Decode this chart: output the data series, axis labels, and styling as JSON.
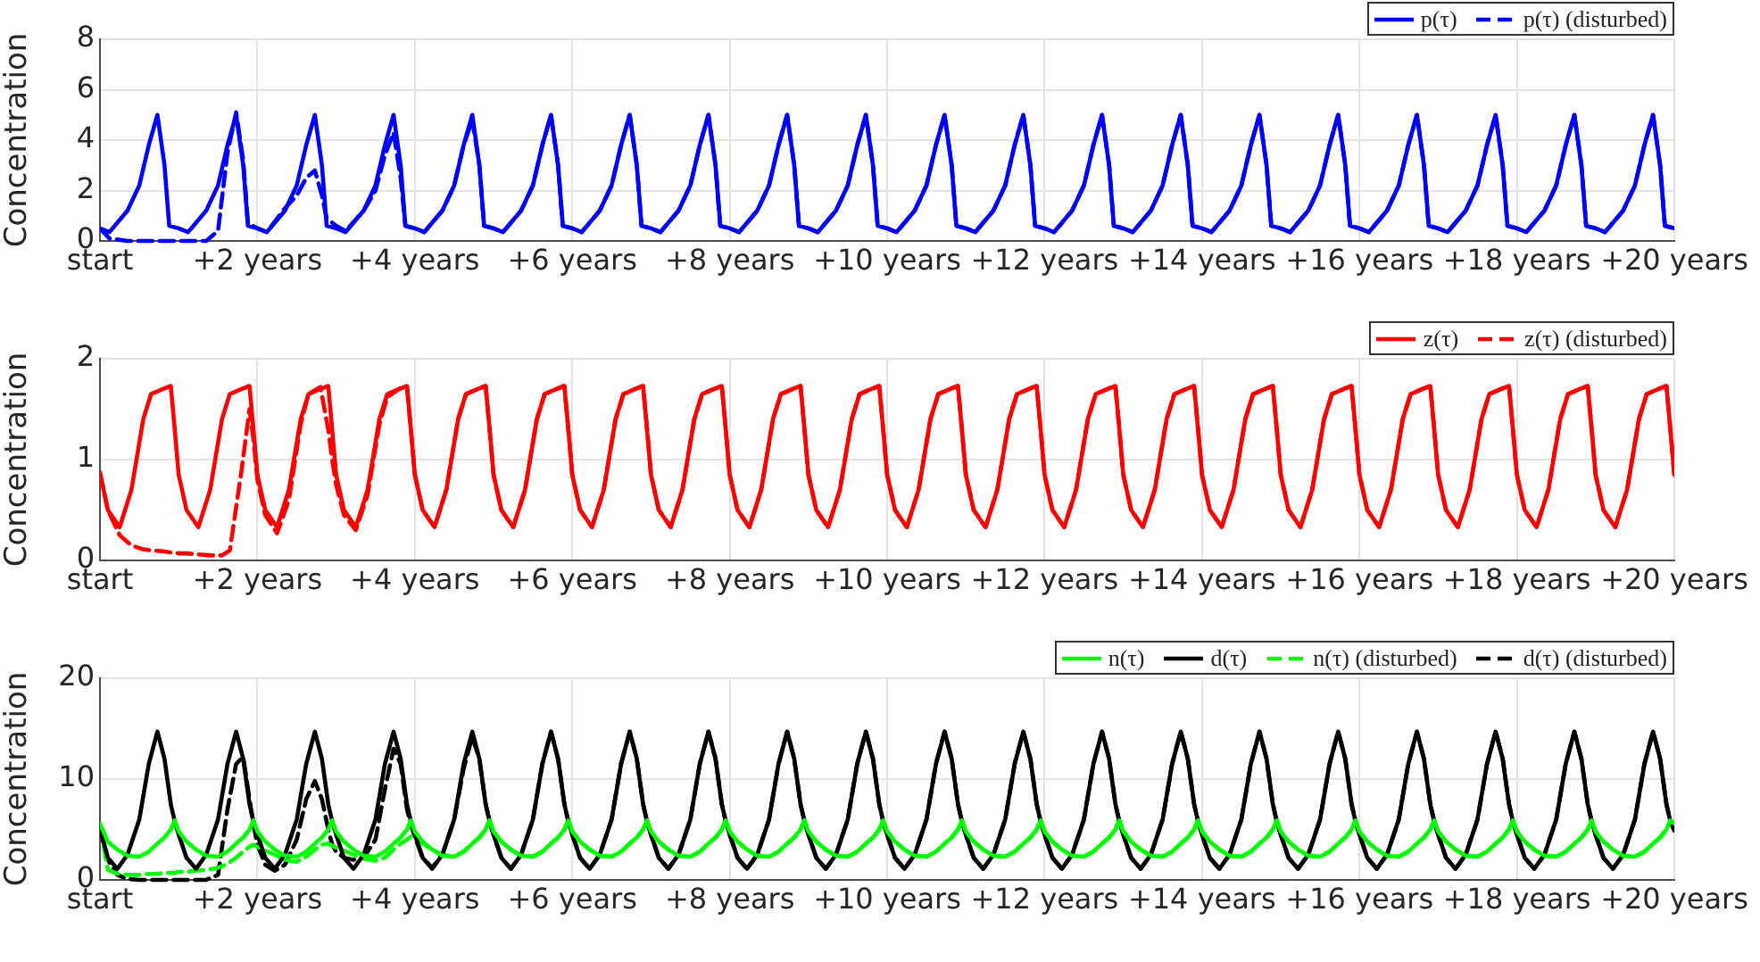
{
  "chart_data": [
    {
      "type": "line",
      "ylabel": "Concentration",
      "xlim": [
        0,
        20
      ],
      "ylim": [
        0,
        8
      ],
      "yticks": [
        0,
        2,
        4,
        6,
        8
      ],
      "xticks": [
        {
          "value": 0,
          "label": "start"
        },
        {
          "value": 2,
          "label": "+2 years"
        },
        {
          "value": 4,
          "label": "+4 years"
        },
        {
          "value": 6,
          "label": "+6 years"
        },
        {
          "value": 8,
          "label": "+8 years"
        },
        {
          "value": 10,
          "label": "+10 years"
        },
        {
          "value": 12,
          "label": "+12 years"
        },
        {
          "value": 14,
          "label": "+14 years"
        },
        {
          "value": 16,
          "label": "+16 years"
        },
        {
          "value": 18,
          "label": "+18 years"
        },
        {
          "value": 20,
          "label": "+20 years"
        }
      ],
      "grid": true,
      "legend": "top right",
      "x": [
        0,
        0.12,
        0.35,
        0.5,
        0.62,
        0.73,
        0.82,
        0.88,
        1,
        1.12,
        1.35,
        1.5,
        1.62,
        1.73,
        1.82,
        1.88,
        2,
        2.12,
        2.35,
        2.5,
        2.62,
        2.73,
        2.82,
        2.88,
        3,
        3.12,
        3.35,
        3.5,
        3.62,
        3.73,
        3.82,
        3.88,
        4,
        4.12,
        4.35,
        4.5,
        4.62,
        4.73,
        4.82,
        4.88,
        5,
        5.12,
        5.35,
        5.5,
        5.62,
        5.73,
        5.82,
        5.88,
        6,
        6.12,
        6.35,
        6.5,
        6.62,
        6.73,
        6.82,
        6.88,
        7,
        7.12,
        7.35,
        7.5,
        7.62,
        7.73,
        7.82,
        7.88,
        8,
        8.12,
        8.35,
        8.5,
        8.62,
        8.73,
        8.82,
        8.88,
        9,
        9.12,
        9.35,
        9.5,
        9.62,
        9.73,
        9.82,
        9.88,
        10,
        10.12,
        10.35,
        10.5,
        10.62,
        10.73,
        10.82,
        10.88,
        11,
        11.12,
        11.35,
        11.5,
        11.62,
        11.73,
        11.82,
        11.88,
        12,
        12.12,
        12.35,
        12.5,
        12.62,
        12.73,
        12.82,
        12.88,
        13,
        13.12,
        13.35,
        13.5,
        13.62,
        13.73,
        13.82,
        13.88,
        14,
        14.12,
        14.35,
        14.5,
        14.62,
        14.73,
        14.82,
        14.88,
        15,
        15.12,
        15.35,
        15.5,
        15.62,
        15.73,
        15.82,
        15.88,
        16,
        16.12,
        16.35,
        16.5,
        16.62,
        16.73,
        16.82,
        16.88,
        17,
        17.12,
        17.35,
        17.5,
        17.62,
        17.73,
        17.82,
        17.88,
        18,
        18.12,
        18.35,
        18.5,
        18.62,
        18.73,
        18.82,
        18.88,
        19,
        19.12,
        19.35,
        19.5,
        19.62,
        19.73,
        19.82,
        19.88,
        20
      ],
      "series": [
        {
          "name": "p(τ)",
          "color": "#0000ff",
          "line_style": "solid",
          "values": [
            0.5,
            0.35,
            1.2,
            2.2,
            3.8,
            5,
            3,
            0.6,
            0.5,
            0.35,
            1.2,
            2.2,
            3.8,
            5,
            3,
            0.6,
            0.5,
            0.35,
            1.2,
            2.2,
            3.8,
            5,
            3,
            0.6,
            0.5,
            0.35,
            1.2,
            2.2,
            3.8,
            5,
            3,
            0.6,
            0.5,
            0.35,
            1.2,
            2.2,
            3.8,
            5,
            3,
            0.6,
            0.5,
            0.35,
            1.2,
            2.2,
            3.8,
            5,
            3,
            0.6,
            0.5,
            0.35,
            1.2,
            2.2,
            3.8,
            5,
            3,
            0.6,
            0.5,
            0.35,
            1.2,
            2.2,
            3.8,
            5,
            3,
            0.6,
            0.5,
            0.35,
            1.2,
            2.2,
            3.8,
            5,
            3,
            0.6,
            0.5,
            0.35,
            1.2,
            2.2,
            3.8,
            5,
            3,
            0.6,
            0.5,
            0.35,
            1.2,
            2.2,
            3.8,
            5,
            3,
            0.6,
            0.5,
            0.35,
            1.2,
            2.2,
            3.8,
            5,
            3,
            0.6,
            0.5,
            0.35,
            1.2,
            2.2,
            3.8,
            5,
            3,
            0.6,
            0.5,
            0.35,
            1.2,
            2.2,
            3.8,
            5,
            3,
            0.6,
            0.5,
            0.35,
            1.2,
            2.2,
            3.8,
            5,
            3,
            0.6,
            0.5,
            0.35,
            1.2,
            2.2,
            3.8,
            5,
            3,
            0.6,
            0.5,
            0.35,
            1.2,
            2.2,
            3.8,
            5,
            3,
            0.6,
            0.5,
            0.35,
            1.2,
            2.2,
            3.8,
            5,
            3,
            0.6,
            0.5,
            0.35,
            1.2,
            2.2,
            3.8,
            5,
            3,
            0.6,
            0.5,
            0.35,
            1.2,
            2.2,
            3.8,
            5,
            3,
            0.6,
            0.5
          ]
        },
        {
          "name": "p(τ) (disturbed)",
          "color": "#0000ff",
          "line_style": "dashed",
          "values": [
            0.5,
            0.1,
            0,
            0,
            0,
            0,
            0,
            0,
            0,
            0,
            0,
            0.4,
            3.5,
            5.1,
            3.2,
            0.7,
            0.5,
            0.35,
            1.3,
            1.8,
            2.5,
            2.8,
            1.8,
            0.9,
            0.6,
            0.4,
            1.2,
            2,
            3.4,
            4.3,
            2.5,
            0.6,
            0.5,
            0.35,
            1.2,
            2.2,
            3.8,
            4.8,
            3,
            0.6,
            0.5,
            0.35,
            1.2,
            2.2,
            3.8,
            5,
            3,
            0.6,
            0.5,
            0.35,
            1.2,
            2.2,
            3.8,
            5,
            3,
            0.6,
            0.5,
            0.35,
            1.2,
            2.2,
            3.8,
            5,
            3,
            0.6,
            0.5,
            0.35,
            1.2,
            2.2,
            3.8,
            5,
            3,
            0.6,
            0.5,
            0.35,
            1.2,
            2.2,
            3.8,
            5,
            3,
            0.6,
            0.5,
            0.35,
            1.2,
            2.2,
            3.8,
            5,
            3,
            0.6,
            0.5,
            0.35,
            1.2,
            2.2,
            3.8,
            5,
            3,
            0.6,
            0.5,
            0.35,
            1.2,
            2.2,
            3.8,
            5,
            3,
            0.6,
            0.5,
            0.35,
            1.2,
            2.2,
            3.8,
            5,
            3,
            0.6,
            0.5,
            0.35,
            1.2,
            2.2,
            3.8,
            5,
            3,
            0.6,
            0.5,
            0.35,
            1.2,
            2.2,
            3.8,
            5,
            3,
            0.6,
            0.5,
            0.35,
            1.2,
            2.2,
            3.8,
            5,
            3,
            0.6,
            0.5,
            0.35,
            1.2,
            2.2,
            3.8,
            5,
            3,
            0.6,
            0.5,
            0.35,
            1.2,
            2.2,
            3.8,
            5,
            3,
            0.6,
            0.5,
            0.35,
            1.2,
            2.2,
            3.8,
            5,
            3,
            0.6,
            0.5
          ]
        }
      ]
    },
    {
      "type": "line",
      "ylabel": "Concentration",
      "xlim": [
        0,
        20
      ],
      "ylim": [
        0,
        2
      ],
      "yticks": [
        0,
        1,
        2
      ],
      "xticks": [
        {
          "value": 0,
          "label": "start"
        },
        {
          "value": 2,
          "label": "+2 years"
        },
        {
          "value": 4,
          "label": "+4 years"
        },
        {
          "value": 6,
          "label": "+6 years"
        },
        {
          "value": 8,
          "label": "+8 years"
        },
        {
          "value": 10,
          "label": "+10 years"
        },
        {
          "value": 12,
          "label": "+12 years"
        },
        {
          "value": 14,
          "label": "+14 years"
        },
        {
          "value": 16,
          "label": "+16 years"
        },
        {
          "value": 18,
          "label": "+18 years"
        },
        {
          "value": 20,
          "label": "+20 years"
        }
      ],
      "grid": true,
      "legend": "top right",
      "x": [
        0,
        0.1,
        0.25,
        0.4,
        0.55,
        0.65,
        0.8,
        0.9,
        0.95,
        1,
        1.1,
        1.25,
        1.4,
        1.55,
        1.65,
        1.8,
        1.9,
        1.95,
        2,
        2.1,
        2.25,
        2.4,
        2.55,
        2.65,
        2.8,
        2.9,
        2.95,
        3,
        3.1,
        3.25,
        3.4,
        3.55,
        3.65,
        3.8,
        3.9,
        3.95,
        4,
        4.1,
        4.25,
        4.4,
        4.55,
        4.65,
        4.8,
        4.9,
        4.95,
        5,
        5.1,
        5.25,
        5.4,
        5.55,
        5.65,
        5.8,
        5.9,
        5.95,
        6,
        6.1,
        6.25,
        6.4,
        6.55,
        6.65,
        6.8,
        6.9,
        6.95,
        7,
        7.1,
        7.25,
        7.4,
        7.55,
        7.65,
        7.8,
        7.9,
        7.95,
        8,
        8.1,
        8.25,
        8.4,
        8.55,
        8.65,
        8.8,
        8.9,
        8.95,
        9,
        9.1,
        9.25,
        9.4,
        9.55,
        9.65,
        9.8,
        9.9,
        9.95,
        10,
        10.1,
        10.25,
        10.4,
        10.55,
        10.65,
        10.8,
        10.9,
        10.95,
        11,
        11.1,
        11.25,
        11.4,
        11.55,
        11.65,
        11.8,
        11.9,
        11.95,
        12,
        12.1,
        12.25,
        12.4,
        12.55,
        12.65,
        12.8,
        12.9,
        12.95,
        13,
        13.1,
        13.25,
        13.4,
        13.55,
        13.65,
        13.8,
        13.9,
        13.95,
        14,
        14.1,
        14.25,
        14.4,
        14.55,
        14.65,
        14.8,
        14.9,
        14.95,
        15,
        15.1,
        15.25,
        15.4,
        15.55,
        15.65,
        15.8,
        15.9,
        15.95,
        16,
        16.1,
        16.25,
        16.4,
        16.55,
        16.65,
        16.8,
        16.9,
        16.95,
        17,
        17.1,
        17.25,
        17.4,
        17.55,
        17.65,
        17.8,
        17.9,
        17.95,
        18,
        18.1,
        18.25,
        18.4,
        18.55,
        18.65,
        18.8,
        18.9,
        18.95,
        19,
        19.1,
        19.25,
        19.4,
        19.55,
        19.65,
        19.8,
        19.9,
        19.95,
        20
      ],
      "series": [
        {
          "name": "z(τ)",
          "color": "#ff0000",
          "line_style": "solid",
          "values": [
            0.87,
            0.5,
            0.33,
            0.7,
            1.4,
            1.65,
            1.7,
            1.73,
            1.3,
            0.85,
            0.5,
            0.33,
            0.7,
            1.4,
            1.65,
            1.7,
            1.73,
            1.3,
            0.85,
            0.5,
            0.33,
            0.7,
            1.4,
            1.65,
            1.7,
            1.73,
            1.3,
            0.85,
            0.5,
            0.33,
            0.7,
            1.4,
            1.65,
            1.7,
            1.73,
            1.3,
            0.85,
            0.5,
            0.33,
            0.7,
            1.4,
            1.65,
            1.7,
            1.73,
            1.3,
            0.85,
            0.5,
            0.33,
            0.7,
            1.4,
            1.65,
            1.7,
            1.73,
            1.3,
            0.85,
            0.5,
            0.33,
            0.7,
            1.4,
            1.65,
            1.7,
            1.73,
            1.3,
            0.85,
            0.5,
            0.33,
            0.7,
            1.4,
            1.65,
            1.7,
            1.73,
            1.3,
            0.85,
            0.5,
            0.33,
            0.7,
            1.4,
            1.65,
            1.7,
            1.73,
            1.3,
            0.85,
            0.5,
            0.33,
            0.7,
            1.4,
            1.65,
            1.7,
            1.73,
            1.3,
            0.85,
            0.5,
            0.33,
            0.7,
            1.4,
            1.65,
            1.7,
            1.73,
            1.3,
            0.85,
            0.5,
            0.33,
            0.7,
            1.4,
            1.65,
            1.7,
            1.73,
            1.3,
            0.85,
            0.5,
            0.33,
            0.7,
            1.4,
            1.65,
            1.7,
            1.73,
            1.3,
            0.85,
            0.5,
            0.33,
            0.7,
            1.4,
            1.65,
            1.7,
            1.73,
            1.3,
            0.85,
            0.5,
            0.33,
            0.7,
            1.4,
            1.65,
            1.7,
            1.73,
            1.3,
            0.85,
            0.5,
            0.33,
            0.7,
            1.4,
            1.65,
            1.7,
            1.73,
            1.3,
            0.85,
            0.5,
            0.33,
            0.7,
            1.4,
            1.65,
            1.7,
            1.73,
            1.3,
            0.85,
            0.5,
            0.33,
            0.7,
            1.4,
            1.65,
            1.7,
            1.73,
            1.3,
            0.85,
            0.5,
            0.33,
            0.7,
            1.4,
            1.65,
            1.7,
            1.73,
            1.3,
            0.85,
            0.5,
            0.33,
            0.7,
            1.4,
            1.65,
            1.7,
            1.73,
            1.3,
            0.85
          ]
        },
        {
          "name": "z(τ) (disturbed)",
          "color": "#ff0000",
          "line_style": "dashed",
          "values": [
            0.87,
            0.5,
            0.25,
            0.15,
            0.11,
            0.1,
            0.09,
            0.08,
            0.08,
            0.07,
            0.07,
            0.06,
            0.05,
            0.05,
            0.1,
            0.9,
            1.5,
            1.2,
            0.8,
            0.45,
            0.27,
            0.6,
            1.35,
            1.65,
            1.72,
            1.3,
            1,
            0.75,
            0.45,
            0.3,
            0.65,
            1.35,
            1.62,
            1.7,
            1.73,
            1.3,
            0.85,
            0.5,
            0.33,
            0.7,
            1.4,
            1.65,
            1.7,
            1.73,
            1.3,
            0.85,
            0.5,
            0.33,
            0.7,
            1.4,
            1.65,
            1.7,
            1.73,
            1.3,
            0.85,
            0.5,
            0.33,
            0.7,
            1.4,
            1.65,
            1.7,
            1.73,
            1.3,
            0.85,
            0.5,
            0.33,
            0.7,
            1.4,
            1.65,
            1.7,
            1.73,
            1.3,
            0.85,
            0.5,
            0.33,
            0.7,
            1.4,
            1.65,
            1.7,
            1.73,
            1.3,
            0.85,
            0.5,
            0.33,
            0.7,
            1.4,
            1.65,
            1.7,
            1.73,
            1.3,
            0.85,
            0.5,
            0.33,
            0.7,
            1.4,
            1.65,
            1.7,
            1.73,
            1.3,
            0.85,
            0.5,
            0.33,
            0.7,
            1.4,
            1.65,
            1.7,
            1.73,
            1.3,
            0.85,
            0.5,
            0.33,
            0.7,
            1.4,
            1.65,
            1.7,
            1.73,
            1.3,
            0.85,
            0.5,
            0.33,
            0.7,
            1.4,
            1.65,
            1.7,
            1.73,
            1.3,
            0.85,
            0.5,
            0.33,
            0.7,
            1.4,
            1.65,
            1.7,
            1.73,
            1.3,
            0.85,
            0.5,
            0.33,
            0.7,
            1.4,
            1.65,
            1.7,
            1.73,
            1.3,
            0.85,
            0.5,
            0.33,
            0.7,
            1.4,
            1.65,
            1.7,
            1.73,
            1.3,
            0.85,
            0.5,
            0.33,
            0.7,
            1.4,
            1.65,
            1.7,
            1.73,
            1.3,
            0.85,
            0.5,
            0.33,
            0.7,
            1.4,
            1.65,
            1.7,
            1.73,
            1.3,
            0.85,
            0.5,
            0.33,
            0.7,
            1.4,
            1.65,
            1.7,
            1.73,
            1.3,
            0.85
          ]
        }
      ]
    },
    {
      "type": "line",
      "ylabel": "Concentration",
      "xlim": [
        0,
        20
      ],
      "ylim": [
        0,
        20
      ],
      "yticks": [
        0,
        10,
        20
      ],
      "xticks": [
        {
          "value": 0,
          "label": "start"
        },
        {
          "value": 2,
          "label": "+2 years"
        },
        {
          "value": 4,
          "label": "+4 years"
        },
        {
          "value": 6,
          "label": "+6 years"
        },
        {
          "value": 8,
          "label": "+8 years"
        },
        {
          "value": 10,
          "label": "+10 years"
        },
        {
          "value": 12,
          "label": "+12 years"
        },
        {
          "value": 14,
          "label": "+14 years"
        },
        {
          "value": 16,
          "label": "+16 years"
        },
        {
          "value": 18,
          "label": "+18 years"
        },
        {
          "value": 20,
          "label": "+20 years"
        }
      ],
      "grid": true,
      "legend": "top right",
      "x": [
        0,
        0.1,
        0.22,
        0.35,
        0.5,
        0.62,
        0.73,
        0.82,
        0.9,
        0.95,
        1,
        1.1,
        1.22,
        1.35,
        1.5,
        1.62,
        1.73,
        1.82,
        1.9,
        1.95,
        2,
        2.1,
        2.22,
        2.35,
        2.5,
        2.62,
        2.73,
        2.82,
        2.9,
        2.95,
        3,
        3.1,
        3.22,
        3.35,
        3.5,
        3.62,
        3.73,
        3.82,
        3.9,
        3.95,
        4,
        4.1,
        4.22,
        4.35,
        4.5,
        4.62,
        4.73,
        4.82,
        4.9,
        4.95,
        5,
        5.1,
        5.22,
        5.35,
        5.5,
        5.62,
        5.73,
        5.82,
        5.9,
        5.95,
        6,
        6.1,
        6.22,
        6.35,
        6.5,
        6.62,
        6.73,
        6.82,
        6.9,
        6.95,
        7,
        7.1,
        7.22,
        7.35,
        7.5,
        7.62,
        7.73,
        7.82,
        7.9,
        7.95,
        8,
        8.1,
        8.22,
        8.35,
        8.5,
        8.62,
        8.73,
        8.82,
        8.9,
        8.95,
        9,
        9.1,
        9.22,
        9.35,
        9.5,
        9.62,
        9.73,
        9.82,
        9.9,
        9.95,
        10,
        10.1,
        10.22,
        10.35,
        10.5,
        10.62,
        10.73,
        10.82,
        10.9,
        10.95,
        11,
        11.1,
        11.22,
        11.35,
        11.5,
        11.62,
        11.73,
        11.82,
        11.9,
        11.95,
        12,
        12.1,
        12.22,
        12.35,
        12.5,
        12.62,
        12.73,
        12.82,
        12.9,
        12.95,
        13,
        13.1,
        13.22,
        13.35,
        13.5,
        13.62,
        13.73,
        13.82,
        13.9,
        13.95,
        14,
        14.1,
        14.22,
        14.35,
        14.5,
        14.62,
        14.73,
        14.82,
        14.9,
        14.95,
        15,
        15.1,
        15.22,
        15.35,
        15.5,
        15.62,
        15.73,
        15.82,
        15.9,
        15.95,
        16,
        16.1,
        16.22,
        16.35,
        16.5,
        16.62,
        16.73,
        16.82,
        16.9,
        16.95,
        17,
        17.1,
        17.22,
        17.35,
        17.5,
        17.62,
        17.73,
        17.82,
        17.9,
        17.95,
        18,
        18.1,
        18.22,
        18.35,
        18.5,
        18.62,
        18.73,
        18.82,
        18.9,
        18.95,
        19,
        19.1,
        19.22,
        19.35,
        19.5,
        19.62,
        19.73,
        19.82,
        19.9,
        19.95,
        20
      ],
      "series": [
        {
          "name": "n(τ)",
          "color": "#00ff00",
          "line_style": "solid",
          "values": [
            5.6,
            3.8,
            3,
            2.4,
            2.3,
            2.8,
            3.6,
            4.2,
            5,
            5.9,
            4.8,
            3.8,
            3,
            2.4,
            2.3,
            2.8,
            3.6,
            4.2,
            5,
            5.9,
            4.8,
            3.8,
            3,
            2.4,
            2.3,
            2.8,
            3.6,
            4.2,
            5,
            5.9,
            4.8,
            3.8,
            3,
            2.4,
            2.3,
            2.8,
            3.6,
            4.2,
            5,
            5.9,
            4.8,
            3.8,
            3,
            2.4,
            2.3,
            2.8,
            3.6,
            4.2,
            5,
            5.9,
            4.8,
            3.8,
            3,
            2.4,
            2.3,
            2.8,
            3.6,
            4.2,
            5,
            5.9,
            4.8,
            3.8,
            3,
            2.4,
            2.3,
            2.8,
            3.6,
            4.2,
            5,
            5.9,
            4.8,
            3.8,
            3,
            2.4,
            2.3,
            2.8,
            3.6,
            4.2,
            5,
            5.9,
            4.8,
            3.8,
            3,
            2.4,
            2.3,
            2.8,
            3.6,
            4.2,
            5,
            5.9,
            4.8,
            3.8,
            3,
            2.4,
            2.3,
            2.8,
            3.6,
            4.2,
            5,
            5.9,
            4.8,
            3.8,
            3,
            2.4,
            2.3,
            2.8,
            3.6,
            4.2,
            5,
            5.9,
            4.8,
            3.8,
            3,
            2.4,
            2.3,
            2.8,
            3.6,
            4.2,
            5,
            5.9,
            4.8,
            3.8,
            3,
            2.4,
            2.3,
            2.8,
            3.6,
            4.2,
            5,
            5.9,
            4.8,
            3.8,
            3,
            2.4,
            2.3,
            2.8,
            3.6,
            4.2,
            5,
            5.9,
            4.8,
            3.8,
            3,
            2.4,
            2.3,
            2.8,
            3.6,
            4.2,
            5,
            5.9,
            4.8,
            3.8,
            3,
            2.4,
            2.3,
            2.8,
            3.6,
            4.2,
            5,
            5.9,
            4.8,
            3.8,
            3,
            2.4,
            2.3,
            2.8,
            3.6,
            4.2,
            5,
            5.9,
            4.8,
            3.8,
            3,
            2.4,
            2.3,
            2.8,
            3.6,
            4.2,
            5,
            5.9,
            4.8,
            3.8,
            3,
            2.4,
            2.3,
            2.8,
            3.6,
            4.2,
            5,
            5.9,
            4.8,
            3.8,
            3,
            2.4,
            2.3,
            2.8,
            3.6,
            4.2,
            5,
            5.9,
            5.6
          ]
        },
        {
          "name": "d(τ)",
          "color": "#000000",
          "line_style": "solid",
          "values": [
            5.1,
            2.2,
            1.1,
            2.5,
            6,
            11.5,
            14.7,
            12,
            7.5,
            5.8,
            4.5,
            2.2,
            1.1,
            2.5,
            6,
            11.5,
            14.7,
            12,
            7.5,
            5.8,
            4.5,
            2.2,
            1.1,
            2.5,
            6,
            11.5,
            14.7,
            12,
            7.5,
            5.8,
            4.5,
            2.2,
            1.1,
            2.5,
            6,
            11.5,
            14.7,
            12,
            7.5,
            5.8,
            4.5,
            2.2,
            1.1,
            2.5,
            6,
            11.5,
            14.7,
            12,
            7.5,
            5.8,
            4.5,
            2.2,
            1.1,
            2.5,
            6,
            11.5,
            14.7,
            12,
            7.5,
            5.8,
            4.5,
            2.2,
            1.1,
            2.5,
            6,
            11.5,
            14.7,
            12,
            7.5,
            5.8,
            4.5,
            2.2,
            1.1,
            2.5,
            6,
            11.5,
            14.7,
            12,
            7.5,
            5.8,
            4.5,
            2.2,
            1.1,
            2.5,
            6,
            11.5,
            14.7,
            12,
            7.5,
            5.8,
            4.5,
            2.2,
            1.1,
            2.5,
            6,
            11.5,
            14.7,
            12,
            7.5,
            5.8,
            4.5,
            2.2,
            1.1,
            2.5,
            6,
            11.5,
            14.7,
            12,
            7.5,
            5.8,
            4.5,
            2.2,
            1.1,
            2.5,
            6,
            11.5,
            14.7,
            12,
            7.5,
            5.8,
            4.5,
            2.2,
            1.1,
            2.5,
            6,
            11.5,
            14.7,
            12,
            7.5,
            5.8,
            4.5,
            2.2,
            1.1,
            2.5,
            6,
            11.5,
            14.7,
            12,
            7.5,
            5.8,
            4.5,
            2.2,
            1.1,
            2.5,
            6,
            11.5,
            14.7,
            12,
            7.5,
            5.8,
            4.5,
            2.2,
            1.1,
            2.5,
            6,
            11.5,
            14.7,
            12,
            7.5,
            5.8,
            4.5,
            2.2,
            1.1,
            2.5,
            6,
            11.5,
            14.7,
            12,
            7.5,
            5.8,
            4.5,
            2.2,
            1.1,
            2.5,
            6,
            11.5,
            14.7,
            12,
            7.5,
            5.8,
            4.5,
            2.2,
            1.1,
            2.5,
            6,
            11.5,
            14.7,
            12,
            7.5,
            5.8,
            4.5,
            2.2,
            1.1,
            2.5,
            6,
            11.5,
            14.7,
            12,
            7.5,
            5.8,
            4.9
          ]
        },
        {
          "name": "n(τ) (disturbed)",
          "color": "#00ff00",
          "line_style": "dashed",
          "values": [
            5.5,
            1,
            0.6,
            0.5,
            0.5,
            0.6,
            0.6,
            0.7,
            0.7,
            0.7,
            0.8,
            0.8,
            0.9,
            1,
            1.2,
            1.6,
            2.2,
            2.8,
            3.3,
            3.5,
            3.3,
            2.9,
            2.5,
            2,
            1.8,
            2.3,
            3,
            3.5,
            3.6,
            3.4,
            3.2,
            2.9,
            2.5,
            2.1,
            1.9,
            2.2,
            3,
            3.6,
            4,
            4.3,
            4.2,
            3.6,
            3,
            2.5,
            2.3,
            2.8,
            3.6,
            4.2,
            5,
            5.9,
            4.8,
            3.8,
            3,
            2.4,
            2.3,
            2.8,
            3.6,
            4.2,
            5,
            5.9,
            4.8,
            3.8,
            3,
            2.4,
            2.3,
            2.8,
            3.6,
            4.2,
            5,
            5.9,
            4.8,
            3.8,
            3,
            2.4,
            2.3,
            2.8,
            3.6,
            4.2,
            5,
            5.9,
            4.8,
            3.8,
            3,
            2.4,
            2.3,
            2.8,
            3.6,
            4.2,
            5,
            5.9,
            4.8,
            3.8,
            3,
            2.4,
            2.3,
            2.8,
            3.6,
            4.2,
            5,
            5.9,
            4.8,
            3.8,
            3,
            2.4,
            2.3,
            2.8,
            3.6,
            4.2,
            5,
            5.9,
            4.8,
            3.8,
            3,
            2.4,
            2.3,
            2.8,
            3.6,
            4.2,
            5,
            5.9,
            4.8,
            3.8,
            3,
            2.4,
            2.3,
            2.8,
            3.6,
            4.2,
            5,
            5.9,
            4.8,
            3.8,
            3,
            2.4,
            2.3,
            2.8,
            3.6,
            4.2,
            5,
            5.9,
            4.8,
            3.8,
            3,
            2.4,
            2.3,
            2.8,
            3.6,
            4.2,
            5,
            5.9,
            4.8,
            3.8,
            3,
            2.4,
            2.3,
            2.8,
            3.6,
            4.2,
            5,
            5.9,
            4.8,
            3.8,
            3,
            2.4,
            2.3,
            2.8,
            3.6,
            4.2,
            5,
            5.9,
            4.8,
            3.8,
            3,
            2.4,
            2.3,
            2.8,
            3.6,
            4.2,
            5,
            5.9,
            4.8,
            3.8,
            3,
            2.4,
            2.3,
            2.8,
            3.6,
            4.2,
            5,
            5.9,
            4.8,
            3.8,
            3,
            2.4,
            2.3,
            2.8,
            3.6,
            4.2,
            5,
            5.9,
            5.6
          ]
        },
        {
          "name": "d(τ) (disturbed)",
          "color": "#000000",
          "line_style": "dashed",
          "values": [
            5.1,
            2,
            0.5,
            0.1,
            0,
            0,
            0,
            0,
            0,
            0,
            0,
            0,
            0,
            0,
            0.5,
            7,
            11.5,
            12.2,
            8,
            5.5,
            3.5,
            1.5,
            0.9,
            1.5,
            4,
            8,
            9.8,
            8,
            5,
            3.5,
            2.8,
            2.2,
            2,
            2.2,
            4,
            9,
            13,
            11.5,
            7,
            5.5,
            4.3,
            2.2,
            1.2,
            2.5,
            6,
            11,
            14.2,
            12,
            7.5,
            5.8,
            4.5,
            2.2,
            1.1,
            2.5,
            6,
            11.5,
            14.7,
            12,
            7.5,
            5.8,
            4.5,
            2.2,
            1.1,
            2.5,
            6,
            11.5,
            14.7,
            12,
            7.5,
            5.8,
            4.5,
            2.2,
            1.1,
            2.5,
            6,
            11.5,
            14.7,
            12,
            7.5,
            5.8,
            4.5,
            2.2,
            1.1,
            2.5,
            6,
            11.5,
            14.7,
            12,
            7.5,
            5.8,
            4.5,
            2.2,
            1.1,
            2.5,
            6,
            11.5,
            14.7,
            12,
            7.5,
            5.8,
            4.5,
            2.2,
            1.1,
            2.5,
            6,
            11.5,
            14.7,
            12,
            7.5,
            5.8,
            4.5,
            2.2,
            1.1,
            2.5,
            6,
            11.5,
            14.7,
            12,
            7.5,
            5.8,
            4.5,
            2.2,
            1.1,
            2.5,
            6,
            11.5,
            14.7,
            12,
            7.5,
            5.8,
            4.5,
            2.2,
            1.1,
            2.5,
            6,
            11.5,
            14.7,
            12,
            7.5,
            5.8,
            4.5,
            2.2,
            1.1,
            2.5,
            6,
            11.5,
            14.7,
            12,
            7.5,
            5.8,
            4.5,
            2.2,
            1.1,
            2.5,
            6,
            11.5,
            14.7,
            12,
            7.5,
            5.8,
            4.5,
            2.2,
            1.1,
            2.5,
            6,
            11.5,
            14.7,
            12,
            7.5,
            5.8,
            4.5,
            2.2,
            1.1,
            2.5,
            6,
            11.5,
            14.7,
            12,
            7.5,
            5.8,
            4.5,
            2.2,
            1.1,
            2.5,
            6,
            11.5,
            14.7,
            12,
            7.5,
            5.8,
            4.5,
            2.2,
            1.1,
            2.5,
            6,
            11.5,
            14.7,
            12,
            7.5,
            5.8,
            4.9
          ]
        }
      ]
    }
  ]
}
